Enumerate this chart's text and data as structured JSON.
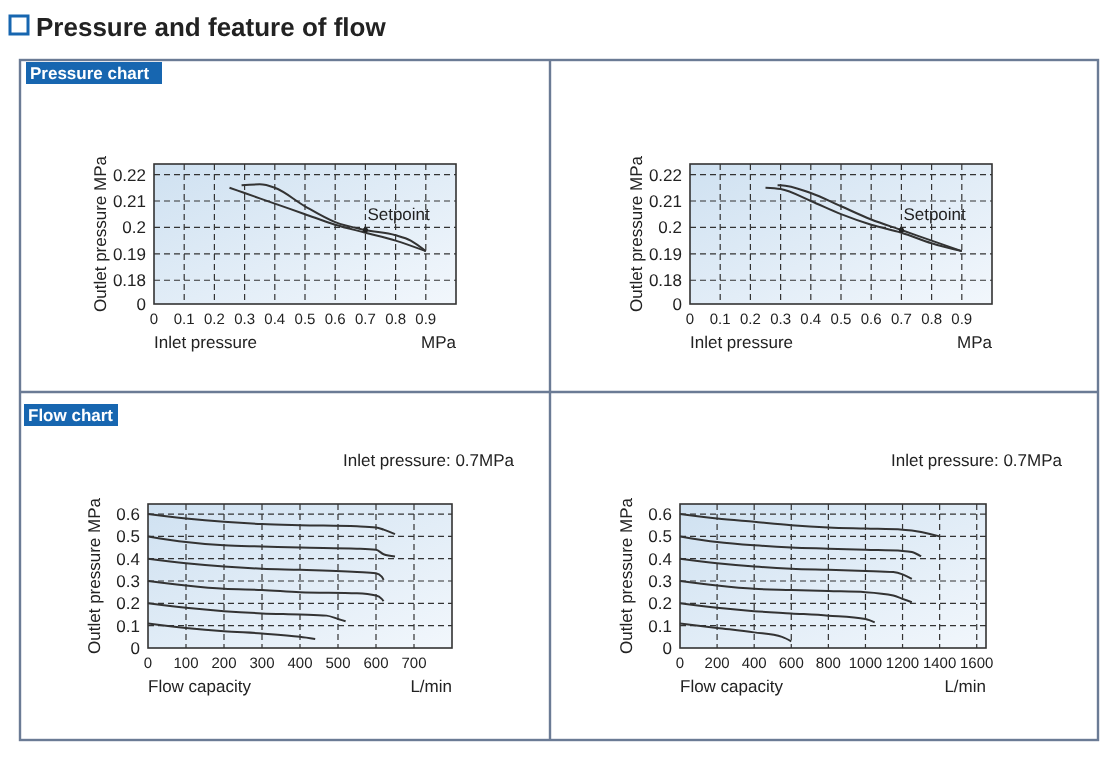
{
  "chart_data": [
    {
      "type": "line",
      "title": "Pressure chart",
      "xlabel": "Inlet pressure",
      "ylabel": "Outlet pressure  MPa",
      "xlim": [
        0,
        1
      ],
      "xticks": [
        0,
        0.1,
        0.2,
        0.3,
        0.4,
        0.5,
        0.6,
        0.7,
        0.8,
        0.9
      ],
      "ylim": [
        0.171,
        0.224
      ],
      "yticks": [
        {
          "value": 0.171,
          "label": "0"
        },
        0.18,
        0.19,
        0.2,
        0.21,
        0.22
      ],
      "grid": true,
      "marker": "none",
      "line_style": "solid",
      "annotations": [
        "MPa",
        "Pressure and feature of flow",
        {
          "text": "Setpoint",
          "x": 0.7,
          "y": 0.199
        }
      ],
      "series": [
        {
          "color": "#333333",
          "x": [
            0.29,
            0.35,
            0.4,
            0.5,
            0.6,
            0.7,
            0.8,
            0.85,
            0.9
          ],
          "values": [
            0.216,
            0.2163,
            0.215,
            0.208,
            0.202,
            0.199,
            0.197,
            0.195,
            0.191
          ]
        },
        {
          "color": "#333333",
          "x": [
            0.25,
            0.3,
            0.4,
            0.5,
            0.6,
            0.7,
            0.8,
            0.9
          ],
          "values": [
            0.215,
            0.213,
            0.209,
            0.205,
            0.201,
            0.198,
            0.195,
            0.191
          ]
        }
      ]
    },
    {
      "type": "line",
      "xlabel": "Inlet pressure",
      "ylabel": "Outlet pressure  MPa",
      "xlim": [
        0,
        1
      ],
      "xticks": [
        0,
        0.1,
        0.2,
        0.3,
        0.4,
        0.5,
        0.6,
        0.7,
        0.8,
        0.9
      ],
      "ylim": [
        0.171,
        0.224
      ],
      "yticks": [
        {
          "value": 0.171,
          "label": "0"
        },
        0.18,
        0.19,
        0.2,
        0.21,
        0.22
      ],
      "grid": true,
      "marker": "none",
      "line_style": "solid",
      "annotations": [
        "MPa",
        {
          "text": "Setpoint",
          "x": 0.7,
          "y": 0.199
        }
      ],
      "series": [
        {
          "color": "#333333",
          "x": [
            0.29,
            0.3,
            0.4,
            0.5,
            0.6,
            0.7,
            0.8,
            0.9
          ],
          "values": [
            0.216,
            0.216,
            0.213,
            0.208,
            0.203,
            0.199,
            0.195,
            0.191
          ]
        },
        {
          "color": "#333333",
          "x": [
            0.25,
            0.3,
            0.4,
            0.5,
            0.6,
            0.7,
            0.8,
            0.9
          ],
          "values": [
            0.215,
            0.2145,
            0.21,
            0.205,
            0.201,
            0.198,
            0.194,
            0.191
          ]
        }
      ]
    },
    {
      "type": "line",
      "title": "Flow chart",
      "subtitle": "Inlet pressure: 0.7MPa",
      "xlabel": "Flow capacity",
      "ylabel": "Outlet pressure  MPa",
      "xlim": [
        0,
        800
      ],
      "xticks": [
        0,
        100,
        200,
        300,
        400,
        500,
        600,
        700
      ],
      "ylim": [
        0,
        0.645
      ],
      "yticks": [
        0,
        0.1,
        0.2,
        0.3,
        0.4,
        0.5,
        0.6
      ],
      "grid": true,
      "marker": "none",
      "line_style": "solid",
      "annotations": [
        "L/min"
      ],
      "series": [
        {
          "color": "#333333",
          "x": [
            0,
            100,
            200,
            300,
            400,
            550,
            600,
            620,
            650
          ],
          "values": [
            0.6,
            0.58,
            0.565,
            0.555,
            0.55,
            0.545,
            0.54,
            0.53,
            0.51
          ]
        },
        {
          "color": "#333333",
          "x": [
            0,
            100,
            200,
            300,
            400,
            550,
            600,
            620,
            650
          ],
          "values": [
            0.5,
            0.475,
            0.46,
            0.455,
            0.45,
            0.445,
            0.44,
            0.42,
            0.41
          ]
        },
        {
          "color": "#333333",
          "x": [
            0,
            100,
            200,
            300,
            400,
            550,
            600,
            615,
            620
          ],
          "values": [
            0.4,
            0.38,
            0.365,
            0.355,
            0.35,
            0.34,
            0.335,
            0.32,
            0.305
          ]
        },
        {
          "color": "#333333",
          "x": [
            0,
            100,
            200,
            300,
            400,
            550,
            600,
            615,
            620
          ],
          "values": [
            0.3,
            0.28,
            0.265,
            0.26,
            0.25,
            0.245,
            0.235,
            0.22,
            0.21
          ]
        },
        {
          "color": "#333333",
          "x": [
            0,
            100,
            200,
            300,
            400,
            470,
            500,
            520
          ],
          "values": [
            0.2,
            0.18,
            0.165,
            0.155,
            0.15,
            0.145,
            0.13,
            0.12
          ]
        },
        {
          "color": "#333333",
          "x": [
            0,
            100,
            200,
            300,
            400,
            440
          ],
          "values": [
            0.11,
            0.09,
            0.075,
            0.065,
            0.05,
            0.04
          ]
        }
      ]
    },
    {
      "type": "line",
      "subtitle": "Inlet pressure: 0.7MPa",
      "xlabel": "Flow capacity",
      "ylabel": "Outlet pressure  MPa",
      "xlim": [
        0,
        1650
      ],
      "xticks": [
        0,
        200,
        400,
        600,
        800,
        1000,
        1200,
        1400,
        1600
      ],
      "ylim": [
        0,
        0.645
      ],
      "yticks": [
        0,
        0.1,
        0.2,
        0.3,
        0.4,
        0.5,
        0.6
      ],
      "grid": true,
      "marker": "none",
      "line_style": "solid",
      "annotations": [
        "L/min"
      ],
      "series": [
        {
          "color": "#333333",
          "x": [
            0,
            200,
            400,
            600,
            800,
            1000,
            1200,
            1300,
            1400
          ],
          "values": [
            0.6,
            0.58,
            0.565,
            0.55,
            0.54,
            0.535,
            0.53,
            0.52,
            0.5
          ]
        },
        {
          "color": "#333333",
          "x": [
            0,
            200,
            400,
            600,
            800,
            1000,
            1200,
            1250,
            1300
          ],
          "values": [
            0.5,
            0.475,
            0.46,
            0.45,
            0.445,
            0.44,
            0.435,
            0.43,
            0.41
          ]
        },
        {
          "color": "#333333",
          "x": [
            0,
            200,
            400,
            600,
            800,
            1000,
            1150,
            1200,
            1250
          ],
          "values": [
            0.4,
            0.38,
            0.365,
            0.355,
            0.35,
            0.345,
            0.34,
            0.33,
            0.31
          ]
        },
        {
          "color": "#333333",
          "x": [
            0,
            200,
            400,
            600,
            800,
            1000,
            1150,
            1200,
            1250
          ],
          "values": [
            0.3,
            0.28,
            0.265,
            0.26,
            0.255,
            0.25,
            0.235,
            0.22,
            0.205
          ]
        },
        {
          "color": "#333333",
          "x": [
            0,
            200,
            400,
            600,
            800,
            1000,
            1050
          ],
          "values": [
            0.2,
            0.18,
            0.165,
            0.155,
            0.145,
            0.13,
            0.115
          ]
        },
        {
          "color": "#333333",
          "x": [
            0,
            200,
            400,
            550,
            600
          ],
          "values": [
            0.11,
            0.09,
            0.07,
            0.05,
            0.03
          ]
        }
      ]
    }
  ]
}
